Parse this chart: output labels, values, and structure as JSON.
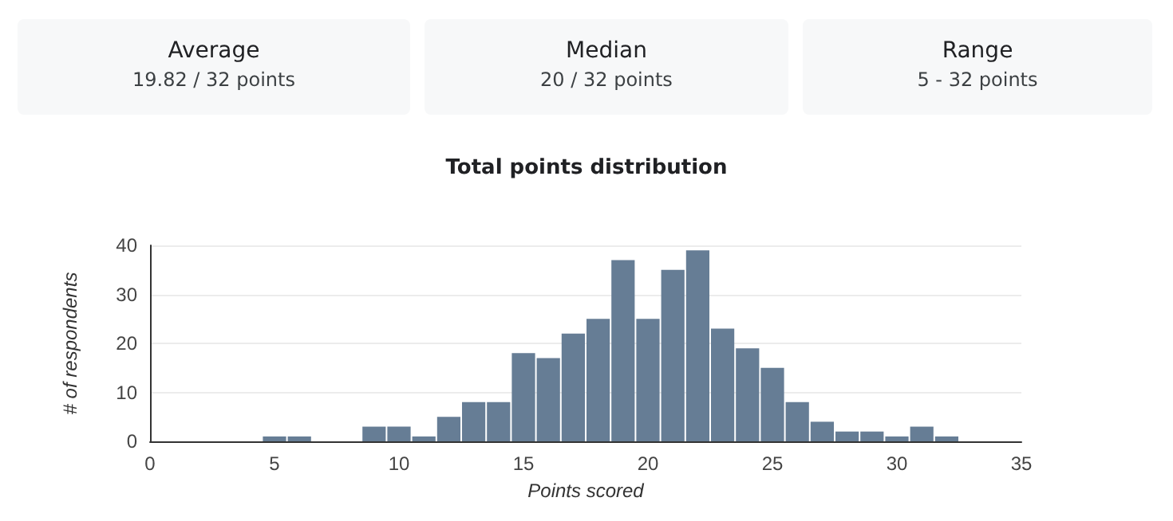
{
  "chart_data": [
    {
      "type": "other",
      "title": "Average",
      "annotations": [
        "19.82 / 32 points"
      ]
    },
    {
      "type": "other",
      "title": "Median",
      "annotations": [
        "20 / 32 points"
      ]
    },
    {
      "type": "other",
      "title": "Range",
      "annotations": [
        "5 - 32 points"
      ]
    },
    {
      "type": "histogram",
      "title": "Total points distribution",
      "xlabel": "Points scored",
      "ylabel": "# of respondents",
      "bins": [
        4.5,
        5.5,
        6.5,
        7.5,
        8.5,
        9.5,
        10.5,
        11.5,
        12.5,
        13.5,
        14.5,
        15.5,
        16.5,
        17.5,
        18.5,
        19.5,
        20.5,
        21.5,
        22.5,
        23.5,
        24.5,
        25.5,
        26.5,
        27.5,
        28.5,
        29.5,
        30.5,
        31.5,
        32.5
      ],
      "values": [
        1,
        1,
        0,
        0,
        3,
        3,
        1,
        5,
        8,
        8,
        18,
        17,
        22,
        25,
        37,
        25,
        35,
        39,
        23,
        19,
        15,
        8,
        4,
        2,
        2,
        1,
        3,
        1
      ],
      "color": "#667d95",
      "xlim": [
        0,
        35
      ],
      "xticks": [
        0,
        5,
        10,
        15,
        20,
        25,
        30,
        35
      ],
      "ylim": [
        0,
        40
      ],
      "yticks": [
        0,
        10,
        20,
        30,
        40
      ],
      "grid": "y"
    }
  ]
}
